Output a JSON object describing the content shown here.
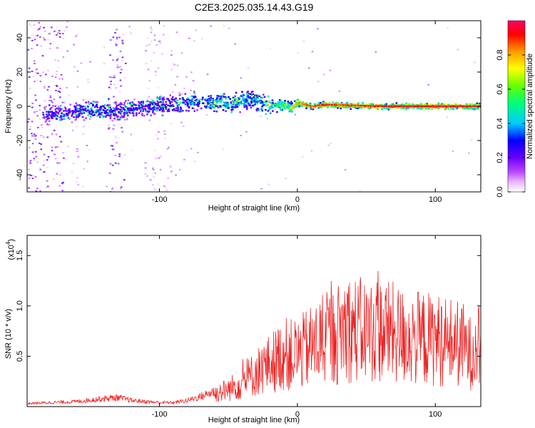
{
  "figure": {
    "title": "C2E3.2025.035.14.43.G19"
  },
  "chart_data": [
    {
      "type": "heatmap",
      "xlabel": "Height of straight line (km)",
      "ylabel": "Frequency (Hz)",
      "xlim": [
        -196,
        133
      ],
      "ylim": [
        -50,
        50
      ],
      "x_ticks": [
        -100,
        0,
        100
      ],
      "y_ticks": [
        -40,
        -20,
        0,
        20,
        40
      ],
      "colorbar": {
        "label": "Normalized spectral amplitude",
        "range": [
          0,
          1
        ],
        "ticks": [
          0.0,
          0.2,
          0.4,
          0.6,
          0.8
        ],
        "tick_labels": [
          "0.0",
          "0.2",
          "0.4",
          "0.6",
          "0.8"
        ],
        "colormap": [
          "#ffffff",
          "#cc66ff",
          "#6600ff",
          "#0000ff",
          "#00ccff",
          "#00ff88",
          "#66ff00",
          "#ffff00",
          "#ff8800",
          "#ff0000",
          "#ff0066"
        ]
      },
      "grid": false,
      "ridge": {
        "x": [
          -185,
          -170,
          -150,
          -130,
          -110,
          -90,
          -70,
          -50,
          -35,
          -20,
          -10,
          -5,
          0,
          10,
          20,
          40,
          60,
          80,
          100,
          120,
          133
        ],
        "y": [
          -5,
          -4,
          -2,
          -3,
          0,
          1,
          3,
          2,
          4,
          0,
          1,
          -1,
          2,
          0,
          1,
          0.5,
          0,
          0,
          0,
          0,
          0
        ],
        "amplitude": [
          0.25,
          0.3,
          0.35,
          0.3,
          0.3,
          0.35,
          0.45,
          0.5,
          0.45,
          0.55,
          0.7,
          0.75,
          0.85,
          0.9,
          0.92,
          0.9,
          0.95,
          0.97,
          0.98,
          0.96,
          0.95
        ]
      }
    },
    {
      "type": "line",
      "xlabel": "Height of straight line (km)",
      "ylabel": "SNR (10 * v/v)",
      "y_multiplier": "(x10",
      "y_multiplier_exp": "4",
      "xlim": [
        -196,
        133
      ],
      "ylim": [
        0,
        1.7
      ],
      "x_ticks": [
        -100,
        0,
        100
      ],
      "y_ticks": [
        0.5,
        1.0,
        1.5
      ],
      "grid": false,
      "color": "#ee2222",
      "series": [
        {
          "x": [
            -196,
            -180,
            -160,
            -140,
            -130,
            -120,
            -100,
            -90,
            -80,
            -70,
            -60,
            -50,
            -40,
            -30,
            -20,
            -15,
            -10,
            -5,
            0,
            5,
            10,
            20,
            30,
            35,
            40,
            50,
            60,
            70,
            80,
            90,
            100,
            110,
            120,
            125,
            130,
            133
          ],
          "y": [
            0.03,
            0.04,
            0.05,
            0.08,
            0.09,
            0.06,
            0.04,
            0.04,
            0.06,
            0.1,
            0.15,
            0.2,
            0.28,
            0.4,
            0.5,
            0.55,
            0.62,
            0.6,
            0.62,
            0.65,
            0.7,
            0.78,
            0.85,
            0.95,
            0.9,
            0.88,
            0.9,
            0.85,
            0.8,
            0.8,
            0.78,
            0.76,
            0.72,
            0.62,
            0.75,
            0.7
          ]
        }
      ]
    }
  ]
}
